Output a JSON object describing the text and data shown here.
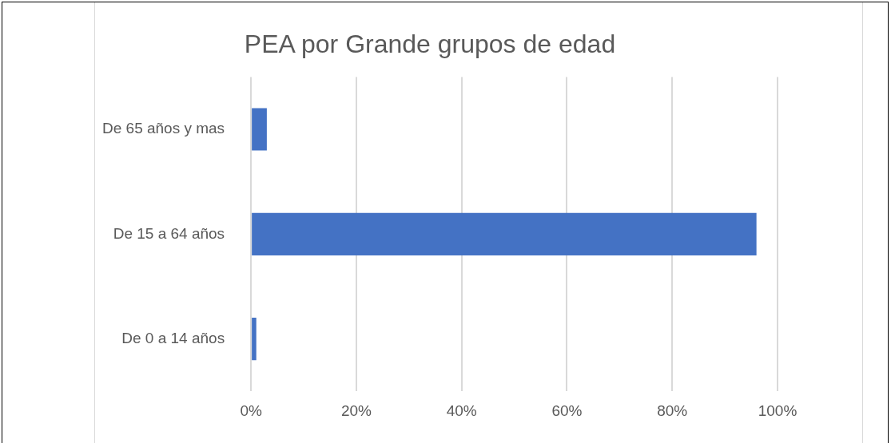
{
  "chart_data": {
    "type": "bar",
    "orientation": "horizontal",
    "title": "PEA por Grande grupos de edad",
    "categories": [
      "De 65 años y mas",
      "De 15 a 64 años",
      "De 0 a 14 años"
    ],
    "values": [
      3,
      96,
      1
    ],
    "color": "#4472c4",
    "xlim": [
      0,
      100
    ],
    "xticks": [
      {
        "value": 0,
        "label": "0%"
      },
      {
        "value": 20,
        "label": "20%"
      },
      {
        "value": 40,
        "label": "40%"
      },
      {
        "value": 60,
        "label": "60%"
      },
      {
        "value": 80,
        "label": "80%"
      },
      {
        "value": 100,
        "label": "100%"
      }
    ],
    "grid": "x",
    "legend": false
  }
}
